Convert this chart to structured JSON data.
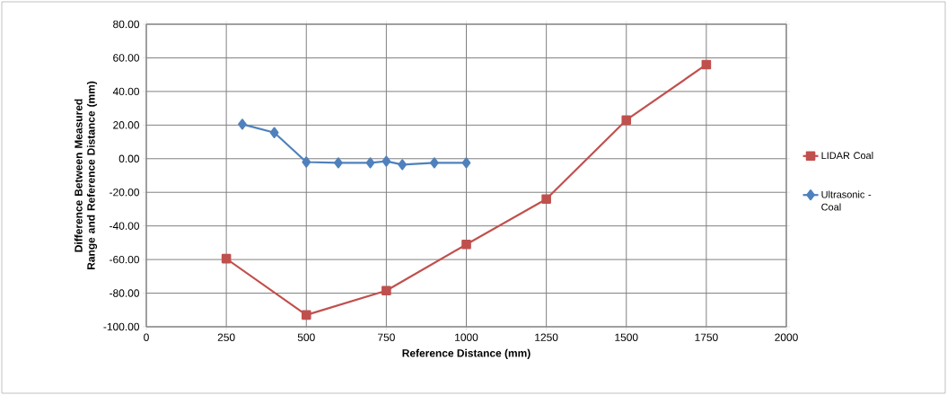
{
  "chart_data": {
    "type": "line",
    "xlabel": "Reference Distance (mm)",
    "ylabel": "Difference Between Measured Range and Reference Distance (mm)",
    "xlim": [
      0,
      2000
    ],
    "xticks": [
      0,
      250,
      500,
      750,
      1000,
      1250,
      1500,
      1750,
      2000
    ],
    "ylim": [
      -100,
      80
    ],
    "yticks": [
      {
        "value": -100,
        "label": "-100.00"
      },
      {
        "value": -80,
        "label": "-80.00"
      },
      {
        "value": -60,
        "label": "-60.00"
      },
      {
        "value": -40,
        "label": "-40.00"
      },
      {
        "value": -20,
        "label": "-20.00"
      },
      {
        "value": 0,
        "label": "0.00"
      },
      {
        "value": 20,
        "label": "20.00"
      },
      {
        "value": 40,
        "label": "40.00"
      },
      {
        "value": 60,
        "label": "60.00"
      },
      {
        "value": 80,
        "label": "80.00"
      }
    ],
    "grid": true,
    "legend": "right",
    "line_style": "solid",
    "series": [
      {
        "name": "LIDAR Coal",
        "color": "#c0504d",
        "marker": "square",
        "x": [
          250,
          500,
          750,
          1000,
          1250,
          1500,
          1750
        ],
        "values": [
          -59.5,
          -93,
          -78.5,
          -51,
          -24,
          23,
          56
        ]
      },
      {
        "name": "Ultrasonic - Coal",
        "color": "#4f81bd",
        "marker": "diamond",
        "x": [
          300,
          400,
          500,
          600,
          700,
          750,
          800,
          900,
          1000
        ],
        "values": [
          20.5,
          15.5,
          -2,
          -2.5,
          -2.5,
          -1.5,
          -3.5,
          -2.5,
          -2.5
        ]
      }
    ]
  }
}
